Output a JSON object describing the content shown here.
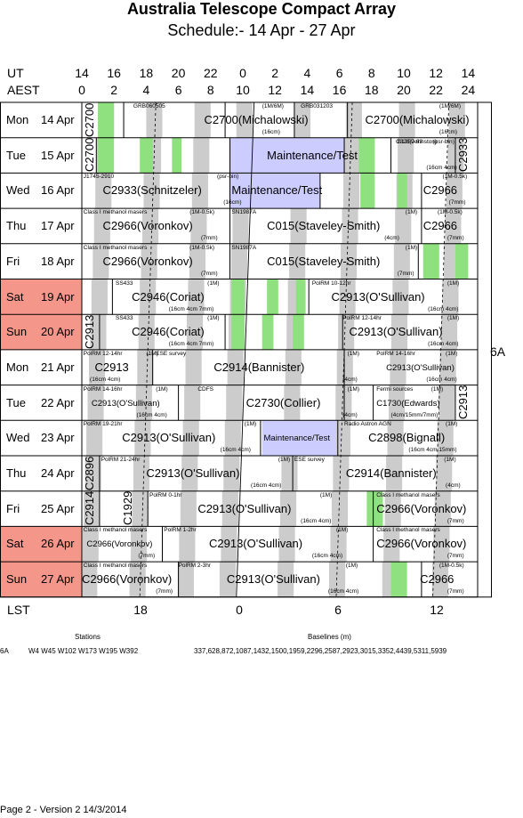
{
  "title": "Australia Telescope Compact Array",
  "subtitle": "Schedule:- 14 Apr - 27 Apr",
  "ut_label": "UT",
  "aest_label": "AEST",
  "lst_label": "LST",
  "ut_hours": [
    "14",
    "16",
    "18",
    "20",
    "22",
    "0",
    "2",
    "4",
    "6",
    "8",
    "10",
    "12",
    "14"
  ],
  "aest_hours": [
    "0",
    "2",
    "4",
    "6",
    "8",
    "10",
    "12",
    "14",
    "16",
    "18",
    "20",
    "22",
    "24"
  ],
  "lst_ticks": [
    "18",
    "0",
    "6",
    "12"
  ],
  "config": "6A",
  "colors": {
    "weekend": "#f4978a",
    "grey": "#cccccc",
    "green": "#8fe07f",
    "maint": "#ccccff"
  },
  "days": [
    {
      "dow": "Mon",
      "date": "14 Apr",
      "weekend": false
    },
    {
      "dow": "Tue",
      "date": "15 Apr",
      "weekend": false
    },
    {
      "dow": "Wed",
      "date": "16 Apr",
      "weekend": false
    },
    {
      "dow": "Thu",
      "date": "17 Apr",
      "weekend": false
    },
    {
      "dow": "Fri",
      "date": "18 Apr",
      "weekend": false
    },
    {
      "dow": "Sat",
      "date": "19 Apr",
      "weekend": true
    },
    {
      "dow": "Sun",
      "date": "20 Apr",
      "weekend": true
    },
    {
      "dow": "Mon",
      "date": "21 Apr",
      "weekend": false
    },
    {
      "dow": "Tue",
      "date": "22 Apr",
      "weekend": false
    },
    {
      "dow": "Wed",
      "date": "23 Apr",
      "weekend": false
    },
    {
      "dow": "Thu",
      "date": "24 Apr",
      "weekend": false
    },
    {
      "dow": "Fri",
      "date": "25 Apr",
      "weekend": false
    },
    {
      "dow": "Sat",
      "date": "26 Apr",
      "weekend": true
    },
    {
      "dow": "Sun",
      "date": "27 Apr",
      "weekend": true
    }
  ],
  "rows": [
    {
      "labels": [
        {
          "t": "C2700",
          "x": 0,
          "size": "big",
          "vert": true
        },
        {
          "t": "GRB060505",
          "x": 3.2,
          "size": "small",
          "pos": "top"
        },
        {
          "t": "C2700(Michalowski)",
          "x": 7.6,
          "size": "big"
        },
        {
          "t": "(1M/6M)",
          "x": 11.2,
          "size": "small",
          "pos": "top"
        },
        {
          "t": "(16cm)",
          "x": 11.2,
          "size": "small",
          "pos": "bot"
        },
        {
          "t": "GRB031203",
          "x": 13.6,
          "size": "small",
          "pos": "top"
        },
        {
          "t": "C2700(Michalowski)",
          "x": 17.6,
          "size": "big"
        },
        {
          "t": "(1M/6M)",
          "x": 22.2,
          "size": "small",
          "pos": "top"
        },
        {
          "t": "(16cm)",
          "x": 22.2,
          "size": "small",
          "pos": "bot"
        }
      ]
    },
    {
      "labels": [
        {
          "t": "C2700",
          "x": 0,
          "size": "big",
          "vert": true
        },
        {
          "t": "Maintenance/Test",
          "x": 11.5,
          "size": "big"
        },
        {
          "t": "B1259-63",
          "x": 19.6,
          "size": "small",
          "pos": "top"
        },
        {
          "t": "(psr-bin)",
          "x": 21.8,
          "size": "small",
          "pos": "top"
        },
        {
          "t": "C326(Johnston)",
          "x": 19.5,
          "size": "small"
        },
        {
          "t": "(16cm 4cm)",
          "x": 21.4,
          "size": "small",
          "pos": "bot"
        },
        {
          "t": "C2933",
          "x": 23.2,
          "size": "big",
          "vert": true
        }
      ]
    },
    {
      "labels": [
        {
          "t": "J1745-2910",
          "x": 0.1,
          "size": "small",
          "pos": "top"
        },
        {
          "t": "(psr-bin)",
          "x": 8.4,
          "size": "small",
          "pos": "top"
        },
        {
          "t": "C2933(Schnitzeler)",
          "x": 1.3,
          "size": "big"
        },
        {
          "t": "(16cm)",
          "x": 8.8,
          "size": "small",
          "pos": "bot"
        },
        {
          "t": "Maintenance/Test",
          "x": 9.3,
          "size": "big"
        },
        {
          "t": "(1M-0.5k)",
          "x": 22.4,
          "size": "small",
          "pos": "top"
        },
        {
          "t": "C2966",
          "x": 21.2,
          "size": "big"
        },
        {
          "t": "(7mm)",
          "x": 22.8,
          "size": "small",
          "pos": "bot"
        }
      ]
    },
    {
      "labels": [
        {
          "t": "Class I methanol masers",
          "x": 0.1,
          "size": "small",
          "pos": "top"
        },
        {
          "t": "(1M-0.5k)",
          "x": 6.7,
          "size": "small",
          "pos": "top"
        },
        {
          "t": "C2966(Voronkov)",
          "x": 1.3,
          "size": "big"
        },
        {
          "t": "(7mm)",
          "x": 7.4,
          "size": "small",
          "pos": "bot"
        },
        {
          "t": "SN1987A",
          "x": 9.3,
          "size": "small",
          "pos": "top"
        },
        {
          "t": "C015(Staveley-Smith)",
          "x": 11.5,
          "size": "big"
        },
        {
          "t": "(1M)",
          "x": 20.1,
          "size": "small",
          "pos": "top"
        },
        {
          "t": "(4cm)",
          "x": 18.8,
          "size": "small",
          "pos": "bot"
        },
        {
          "t": "(1M-0.5k)",
          "x": 22.1,
          "size": "small",
          "pos": "top"
        },
        {
          "t": "C2966",
          "x": 21.2,
          "size": "big"
        },
        {
          "t": "(7mm)",
          "x": 22.7,
          "size": "small",
          "pos": "bot"
        }
      ]
    },
    {
      "labels": [
        {
          "t": "Class I methanol masers",
          "x": 0.1,
          "size": "small",
          "pos": "top"
        },
        {
          "t": "(1M-0.5k)",
          "x": 6.7,
          "size": "small",
          "pos": "top"
        },
        {
          "t": "C2966(Voronkov)",
          "x": 1.3,
          "size": "big"
        },
        {
          "t": "(7mm)",
          "x": 7.4,
          "size": "small",
          "pos": "bot"
        },
        {
          "t": "SN1987A",
          "x": 9.3,
          "size": "small",
          "pos": "top"
        },
        {
          "t": "C015(Staveley-Smith)",
          "x": 11.5,
          "size": "big"
        },
        {
          "t": "(1M)",
          "x": 20.1,
          "size": "small",
          "pos": "top"
        },
        {
          "t": "(7mm)",
          "x": 19.6,
          "size": "small",
          "pos": "bot"
        }
      ]
    },
    {
      "labels": [
        {
          "t": "SS433",
          "x": 2.1,
          "size": "small",
          "pos": "top"
        },
        {
          "t": "(1M)",
          "x": 7.8,
          "size": "small",
          "pos": "top"
        },
        {
          "t": "C2946(Coriat)",
          "x": 3.1,
          "size": "big"
        },
        {
          "t": "(16cm 4cm 7mm)",
          "x": 5.4,
          "size": "small",
          "pos": "bot"
        },
        {
          "t": "PolRM 10-12hr",
          "x": 14.3,
          "size": "small",
          "pos": "top"
        },
        {
          "t": "(1M)",
          "x": 22.7,
          "size": "small",
          "pos": "top"
        },
        {
          "t": "C2913(O'Sullivan)",
          "x": 15.5,
          "size": "big"
        },
        {
          "t": "(16cm 4cm)",
          "x": 21.5,
          "size": "small",
          "pos": "bot"
        }
      ]
    },
    {
      "labels": [
        {
          "t": "C2913",
          "x": 0,
          "size": "big",
          "vert": true
        },
        {
          "t": "SS433",
          "x": 2.1,
          "size": "small",
          "pos": "top"
        },
        {
          "t": "(1M)",
          "x": 7.8,
          "size": "small",
          "pos": "top"
        },
        {
          "t": "C2946(Coriat)",
          "x": 3.1,
          "size": "big"
        },
        {
          "t": "(16cm 4cm 7mm)",
          "x": 5.4,
          "size": "small",
          "pos": "bot"
        },
        {
          "t": "PolRM 12-14hr",
          "x": 16.2,
          "size": "small",
          "pos": "top"
        },
        {
          "t": "(1M)",
          "x": 22.7,
          "size": "small",
          "pos": "top"
        },
        {
          "t": "C2913(O'Sullivan)",
          "x": 16.6,
          "size": "big"
        },
        {
          "t": "(16cm 4cm)",
          "x": 21.5,
          "size": "small",
          "pos": "bot"
        }
      ]
    },
    {
      "labels": [
        {
          "t": "PolRM 12-14hr",
          "x": 0.1,
          "size": "small",
          "pos": "top"
        },
        {
          "t": "(1M)",
          "x": 4.0,
          "size": "small",
          "pos": "top"
        },
        {
          "t": "C2913",
          "x": 0.8,
          "size": "big"
        },
        {
          "t": "(16cm 4cm)",
          "x": 0.5,
          "size": "small",
          "pos": "bot"
        },
        {
          "t": "ESE survey",
          "x": 4.6,
          "size": "small",
          "pos": "top"
        },
        {
          "t": "C2914(Bannister)",
          "x": 8.2,
          "size": "big"
        },
        {
          "t": "(1M)",
          "x": 16.5,
          "size": "small",
          "pos": "top"
        },
        {
          "t": "(4cm)",
          "x": 16.2,
          "size": "small",
          "pos": "bot"
        },
        {
          "t": "PolRM 14-16hr",
          "x": 18.3,
          "size": "small",
          "pos": "top"
        },
        {
          "t": "(1M)",
          "x": 22.6,
          "size": "small",
          "pos": "top"
        },
        {
          "t": "C2913(O'Sullivan)",
          "x": 18.9,
          "size": "small2"
        },
        {
          "t": "(16cm 4cm)",
          "x": 21.4,
          "size": "small",
          "pos": "bot"
        }
      ]
    },
    {
      "labels": [
        {
          "t": "PolRM 14-16hr",
          "x": 0.1,
          "size": "small",
          "pos": "top"
        },
        {
          "t": "(1M)",
          "x": 4.6,
          "size": "small",
          "pos": "top"
        },
        {
          "t": "C2913(O'Sullivan)",
          "x": 0.6,
          "size": "small2"
        },
        {
          "t": "(16cm 4cm)",
          "x": 3.4,
          "size": "small",
          "pos": "bot"
        },
        {
          "t": "CDFS",
          "x": 7.2,
          "size": "small",
          "pos": "top"
        },
        {
          "t": "C2730(Collier)",
          "x": 10.2,
          "size": "big"
        },
        {
          "t": "(1M)",
          "x": 16.5,
          "size": "small",
          "pos": "top"
        },
        {
          "t": "(4cm)",
          "x": 16.2,
          "size": "small",
          "pos": "bot"
        },
        {
          "t": "Fermi sources",
          "x": 18.3,
          "size": "small",
          "pos": "top"
        },
        {
          "t": "(1M)",
          "x": 21.7,
          "size": "small",
          "pos": "top"
        },
        {
          "t": "C1730(Edwards)",
          "x": 18.3,
          "size": "small2"
        },
        {
          "t": "(4cm/15mm/7mm)",
          "x": 19.2,
          "size": "small",
          "pos": "bot"
        },
        {
          "t": "C2913",
          "x": 23.2,
          "size": "big",
          "vert": true
        }
      ]
    },
    {
      "labels": [
        {
          "t": "PolRM 19-21hr",
          "x": 0.1,
          "size": "small",
          "pos": "top"
        },
        {
          "t": "(1M)",
          "x": 10.1,
          "size": "small",
          "pos": "top"
        },
        {
          "t": "C2913(O'Sullivan)",
          "x": 2.5,
          "size": "big"
        },
        {
          "t": "(16cm 4cm)",
          "x": 8.6,
          "size": "small",
          "pos": "bot"
        },
        {
          "t": "Maintenance/Test",
          "x": 11.3,
          "size": "small2"
        },
        {
          "t": "Radio Astron AGN",
          "x": 16.3,
          "size": "small",
          "pos": "top"
        },
        {
          "t": "(1M)",
          "x": 22.6,
          "size": "small",
          "pos": "top"
        },
        {
          "t": "C2898(Bignall)",
          "x": 17.8,
          "size": "big"
        },
        {
          "t": "(16cm 4cm 15mm)",
          "x": 20.3,
          "size": "small",
          "pos": "bot"
        }
      ]
    },
    {
      "labels": [
        {
          "t": "C2896",
          "x": 0,
          "size": "big",
          "vert": true
        },
        {
          "t": "PolRM 21-24hr",
          "x": 1.2,
          "size": "small",
          "pos": "top"
        },
        {
          "t": "(1M)",
          "x": 12.2,
          "size": "small",
          "pos": "top"
        },
        {
          "t": "C2913(O'Sullivan)",
          "x": 4.0,
          "size": "big"
        },
        {
          "t": "(16cm 4cm)",
          "x": 10.5,
          "size": "small",
          "pos": "bot"
        },
        {
          "t": "ESE survey",
          "x": 13.2,
          "size": "small",
          "pos": "top"
        },
        {
          "t": "C2914(Bannister)",
          "x": 16.4,
          "size": "big"
        },
        {
          "t": "(1M)",
          "x": 22.5,
          "size": "small",
          "pos": "top"
        },
        {
          "t": "(4cm)",
          "x": 22.6,
          "size": "small",
          "pos": "bot"
        }
      ]
    },
    {
      "labels": [
        {
          "t": "C2914",
          "x": 0,
          "size": "big",
          "vert": true
        },
        {
          "t": "C1929",
          "x": 2.4,
          "size": "big",
          "vert": true
        },
        {
          "t": "PolRM 0-1hr",
          "x": 4.2,
          "size": "small",
          "pos": "top"
        },
        {
          "t": "(1M)",
          "x": 14.8,
          "size": "small",
          "pos": "top"
        },
        {
          "t": "C2913(O'Sullivan)",
          "x": 7.2,
          "size": "big"
        },
        {
          "t": "(16cm 4cm)",
          "x": 13.6,
          "size": "small",
          "pos": "bot"
        },
        {
          "t": "Class I methanol masers",
          "x": 18.3,
          "size": "small",
          "pos": "top"
        },
        {
          "t": "C2966(Voronkov)",
          "x": 18.3,
          "size": "big"
        },
        {
          "t": "(7mm)",
          "x": 22.7,
          "size": "small",
          "pos": "bot"
        }
      ]
    },
    {
      "labels": [
        {
          "t": "Class I methanol masers",
          "x": 0.1,
          "size": "small",
          "pos": "top"
        },
        {
          "t": "C2966(Voronkov)",
          "x": 0.3,
          "size": "small2"
        },
        {
          "t": "(7mm)",
          "x": 3.5,
          "size": "small",
          "pos": "bot"
        },
        {
          "t": "PolRM 1-2hr",
          "x": 5.1,
          "size": "small",
          "pos": "top"
        },
        {
          "t": "(1M)",
          "x": 15.8,
          "size": "small",
          "pos": "top"
        },
        {
          "t": "C2913(O'Sullivan)",
          "x": 7.9,
          "size": "big"
        },
        {
          "t": "(16cm 4cm)",
          "x": 14.3,
          "size": "small",
          "pos": "bot"
        },
        {
          "t": "Class I methanol masers",
          "x": 18.3,
          "size": "small",
          "pos": "top"
        },
        {
          "t": "C2966(Voronkov)",
          "x": 18.3,
          "size": "big"
        },
        {
          "t": "(7mm)",
          "x": 22.7,
          "size": "small",
          "pos": "bot"
        }
      ]
    },
    {
      "labels": [
        {
          "t": "Class I methanol masers",
          "x": 0.1,
          "size": "small",
          "pos": "top"
        },
        {
          "t": "C2966(Voronkov)",
          "x": 0.0,
          "size": "big"
        },
        {
          "t": "(7mm)",
          "x": 4.6,
          "size": "small",
          "pos": "bot"
        },
        {
          "t": "PolRM 2-3hr",
          "x": 6.0,
          "size": "small",
          "pos": "top"
        },
        {
          "t": "(1M)",
          "x": 16.4,
          "size": "small",
          "pos": "top"
        },
        {
          "t": "C2913(O'Sullivan)",
          "x": 9.0,
          "size": "big"
        },
        {
          "t": "(16cm 4cm)",
          "x": 15.3,
          "size": "small",
          "pos": "bot"
        },
        {
          "t": "(1M-0.5k)",
          "x": 22.2,
          "size": "small",
          "pos": "top"
        },
        {
          "t": "C2966",
          "x": 21.0,
          "size": "big"
        },
        {
          "t": "(7mm)",
          "x": 22.7,
          "size": "small",
          "pos": "bot"
        }
      ]
    }
  ],
  "footer": {
    "stations_header": "Stations",
    "baselines_header": "Baselines (m)",
    "config": "6A",
    "stations": "W4 W45 W102 W173 W195 W392",
    "baselines": "337,628,872,1087,1432,1500,1959,2296,2587,2923,3015,3352,4439,5311,5939",
    "version": "Page 2 - Version 2  14/3/2014"
  }
}
